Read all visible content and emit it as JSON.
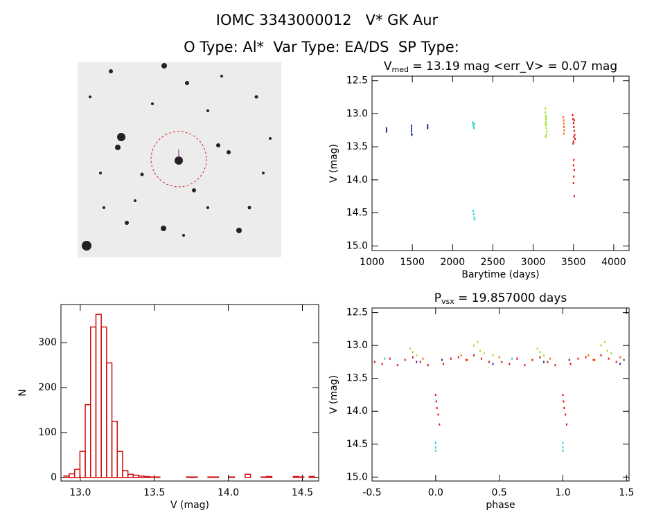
{
  "header": {
    "title": "IOMC 3343000012   V* GK Aur",
    "subtitle": "O Type: Al*  Var Type: EA/DS  SP Type:"
  },
  "chart_data": [
    {
      "type": "scatter",
      "title_parts": [
        {
          "text": "V"
        },
        {
          "text": "med",
          "sub": true
        },
        {
          "text": " = 13.19 mag <err_V> = 0.07 mag"
        }
      ],
      "x_label": "Barytime (days)",
      "y_label": "V (mag)",
      "xlim": [
        1000,
        4190
      ],
      "xticks": [
        1000,
        1500,
        2000,
        2500,
        3000,
        3500,
        4000
      ],
      "ylim": [
        15.07,
        12.43
      ],
      "yticks": [
        12.5,
        {
          "value": 13,
          "label": "13.0"
        },
        13.5,
        {
          "value": 14,
          "label": "14.0"
        },
        14.5,
        {
          "value": 15,
          "label": "15.0"
        }
      ],
      "series": [
        {
          "color": "#2030a0",
          "x": [
            1180,
            1180,
            1180,
            1490,
            1490,
            1490,
            1490,
            1495,
            1690,
            1690,
            1690
          ],
          "values": [
            13.22,
            13.25,
            13.27,
            13.18,
            13.22,
            13.26,
            13.3,
            13.32,
            13.17,
            13.2,
            13.22
          ]
        },
        {
          "color": "#30d0d0",
          "x": [
            2250,
            2255,
            2260,
            2265,
            2270,
            2255,
            2262,
            2268,
            2270
          ],
          "values": [
            13.13,
            13.16,
            13.19,
            13.22,
            13.15,
            14.47,
            14.52,
            14.57,
            14.6
          ]
        },
        {
          "color": "#a0e020",
          "x": [
            3150,
            3152,
            3155,
            3158,
            3160,
            3162,
            3165,
            3168,
            3160,
            3155,
            3150,
            3163
          ],
          "values": [
            12.92,
            12.98,
            13.03,
            13.08,
            13.12,
            13.17,
            13.22,
            13.27,
            13.32,
            13.35,
            13.15,
            13.05
          ]
        },
        {
          "color": "#f07010",
          "x": [
            3375,
            3378,
            3380,
            3382,
            3385,
            3380
          ],
          "values": [
            13.05,
            13.1,
            13.15,
            13.2,
            13.25,
            13.3
          ]
        },
        {
          "color": "#e01010",
          "x": [
            3490,
            3495,
            3500,
            3505,
            3510,
            3515,
            3520,
            3495,
            3500,
            3505,
            3510,
            3505,
            3500,
            3510,
            3505,
            3500,
            3510
          ],
          "values": [
            13.02,
            13.08,
            13.14,
            13.2,
            13.26,
            13.32,
            13.38,
            13.45,
            13.42,
            13.35,
            13.1,
            13.7,
            13.78,
            13.85,
            13.95,
            14.05,
            14.25
          ]
        }
      ]
    },
    {
      "type": "histogram",
      "x_label": "V (mag)",
      "y_label": "N",
      "color": "#d01010",
      "xlim": [
        12.87,
        14.61
      ],
      "xticks": [
        {
          "value": 13,
          "label": "13.0"
        },
        13.5,
        {
          "value": 14,
          "label": "14.0"
        },
        14.5
      ],
      "ylim": [
        -8,
        385
      ],
      "yticks": [
        0,
        100,
        200,
        300
      ],
      "bins": [
        12.89,
        12.926,
        12.962,
        12.998,
        13.034,
        13.07,
        13.106,
        13.142,
        13.178,
        13.214,
        13.25,
        13.286,
        13.322,
        13.358,
        13.394,
        13.43,
        13.466,
        13.502,
        13.538,
        13.574,
        13.61,
        13.646,
        13.682,
        13.718,
        13.754,
        13.79,
        13.826,
        13.862,
        13.898,
        13.934,
        13.97,
        14.006,
        14.042,
        14.078,
        14.114,
        14.15,
        14.186,
        14.222,
        14.258,
        14.294,
        14.33,
        14.366,
        14.402,
        14.438,
        14.474,
        14.51,
        14.546,
        14.582,
        14.618
      ],
      "values": [
        3,
        8,
        18,
        58,
        162,
        335,
        363,
        335,
        255,
        125,
        58,
        15,
        7,
        5,
        3,
        2,
        1,
        1,
        0,
        0,
        0,
        0,
        0,
        1,
        1,
        0,
        0,
        1,
        1,
        0,
        0,
        1,
        0,
        0,
        7,
        0,
        0,
        1,
        2,
        0,
        0,
        0,
        0,
        2,
        1,
        0,
        2,
        0
      ]
    },
    {
      "type": "scatter",
      "title_parts": [
        {
          "text": "P"
        },
        {
          "text": "vsx",
          "sub": true
        },
        {
          "text": " = 19.857000 days"
        }
      ],
      "x_label": "phase",
      "y_label": "V (mag)",
      "xlim": [
        -0.5,
        1.52
      ],
      "xticks": [
        -0.5,
        {
          "value": 0,
          "label": "0.0"
        },
        0.5,
        {
          "value": 1,
          "label": "1.0"
        },
        1.5
      ],
      "ylim": [
        15.06,
        12.43
      ],
      "yticks": [
        12.5,
        {
          "value": 13,
          "label": "13.0"
        },
        13.5,
        {
          "value": 14,
          "label": "14.0"
        },
        14.5,
        {
          "value": 15,
          "label": "15.0"
        }
      ],
      "series": [
        {
          "color": "#e01010",
          "x": [
            -0.48,
            -0.42,
            -0.36,
            -0.3,
            -0.24,
            -0.18,
            -0.12,
            -0.06,
            0.0,
            0.005,
            0.01,
            0.02,
            0.03,
            0.06,
            0.12,
            0.18,
            0.24,
            0.3,
            0.36,
            0.42,
            0.52,
            0.58,
            0.64,
            0.7,
            0.76,
            0.82,
            0.88,
            0.94,
            1.0,
            1.005,
            1.01,
            1.02,
            1.03,
            1.06,
            1.12,
            1.18,
            1.24,
            1.3,
            1.36,
            1.42,
            1.48
          ],
          "values": [
            13.25,
            13.28,
            13.2,
            13.3,
            13.22,
            13.18,
            13.25,
            13.3,
            13.75,
            13.85,
            13.95,
            14.05,
            14.2,
            13.28,
            13.2,
            13.18,
            13.22,
            13.15,
            13.2,
            13.25,
            13.25,
            13.28,
            13.2,
            13.3,
            13.22,
            13.18,
            13.25,
            13.3,
            13.75,
            13.85,
            13.95,
            14.05,
            14.2,
            13.28,
            13.2,
            13.18,
            13.22,
            13.15,
            13.2,
            13.25,
            13.22
          ]
        },
        {
          "color": "#a0e020",
          "x": [
            -0.2,
            -0.18,
            -0.15,
            0.3,
            0.33,
            0.35,
            0.38,
            0.45,
            0.8,
            0.82,
            0.85,
            1.3,
            1.33,
            1.35,
            1.38
          ],
          "values": [
            13.05,
            13.1,
            13.15,
            13.0,
            12.95,
            13.08,
            13.12,
            13.15,
            13.05,
            13.1,
            13.15,
            13.0,
            12.95,
            13.08,
            13.12
          ]
        },
        {
          "color": "#f07010",
          "x": [
            -0.1,
            0.2,
            0.25,
            0.5,
            0.9,
            1.2,
            1.25,
            1.45
          ],
          "values": [
            13.2,
            13.15,
            13.22,
            13.18,
            13.2,
            13.15,
            13.22,
            13.18
          ]
        },
        {
          "color": "#30d0d0",
          "x": [
            0.0,
            0.0,
            0.0,
            1.0,
            1.0,
            1.0,
            -0.4,
            0.6
          ],
          "values": [
            14.48,
            14.55,
            14.6,
            14.48,
            14.55,
            14.6,
            13.2,
            13.2
          ]
        },
        {
          "color": "#2030a0",
          "x": [
            -0.15,
            0.05,
            0.45,
            0.85,
            1.05,
            1.45
          ],
          "values": [
            13.25,
            13.22,
            13.28,
            13.25,
            13.22,
            13.28
          ]
        }
      ]
    }
  ]
}
